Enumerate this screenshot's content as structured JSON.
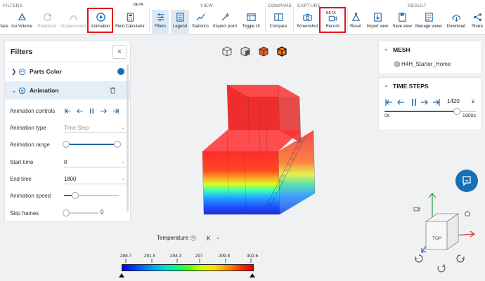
{
  "toolbar": {
    "groups": {
      "filters": "FILTERS",
      "view": "VIEW",
      "compare": "COMPARE",
      "capture": "CAPTURE",
      "result": "RESULT"
    },
    "beta": "BETA",
    "buttons": {
      "surface": "face",
      "iso_volume": "Iso Volume",
      "rotational": "Rotational",
      "displacement": "Displacement",
      "animation": "Animation",
      "field_calculator": "Field Calculator",
      "filters": "Filters",
      "legend": "Legend",
      "statistics": "Statistics",
      "inspect_point": "Inspect point",
      "toggle_ui": "Toggle UI",
      "compare": "Compare",
      "screenshot": "Screenshot",
      "record": "Record",
      "reset": "Reset",
      "import_view": "Import view",
      "save_view": "Save view",
      "manage_views": "Manage views",
      "download": "Download",
      "share": "Share"
    }
  },
  "filters_panel": {
    "title": "Filters",
    "close": "×",
    "items": [
      {
        "label": "Parts Color"
      },
      {
        "label": "Animation"
      }
    ],
    "fields": {
      "animation_controls": "Animation controls",
      "animation_type": "Animation type",
      "animation_type_value": "Time Step",
      "animation_range": "Animation range",
      "start_time": "Start time",
      "start_time_value": "0",
      "end_time": "End time",
      "end_time_value": "1800",
      "animation_speed": "Animation speed",
      "animation_speed_fraction": 0.2,
      "skip_frames": "Skip frames",
      "skip_frames_value": "0"
    }
  },
  "mesh_panel": {
    "title": "MESH",
    "item": "H4H_Starter_Home"
  },
  "time_steps_panel": {
    "title": "TIME STEPS",
    "value": "1420",
    "unit": "s",
    "min": "0s",
    "max": "1800s",
    "slider_fraction": 0.79
  },
  "legend": {
    "title": "Temperature",
    "unit": "K",
    "ticks": [
      "288.7",
      "291.5",
      "294.3",
      "297",
      "299.8",
      "302.6"
    ]
  },
  "viewcube": {
    "face": "TOP"
  },
  "colors": {
    "accent": "#1e6aa8",
    "highlight_box": "#e2131c",
    "selected_row": "#e3eef7"
  }
}
